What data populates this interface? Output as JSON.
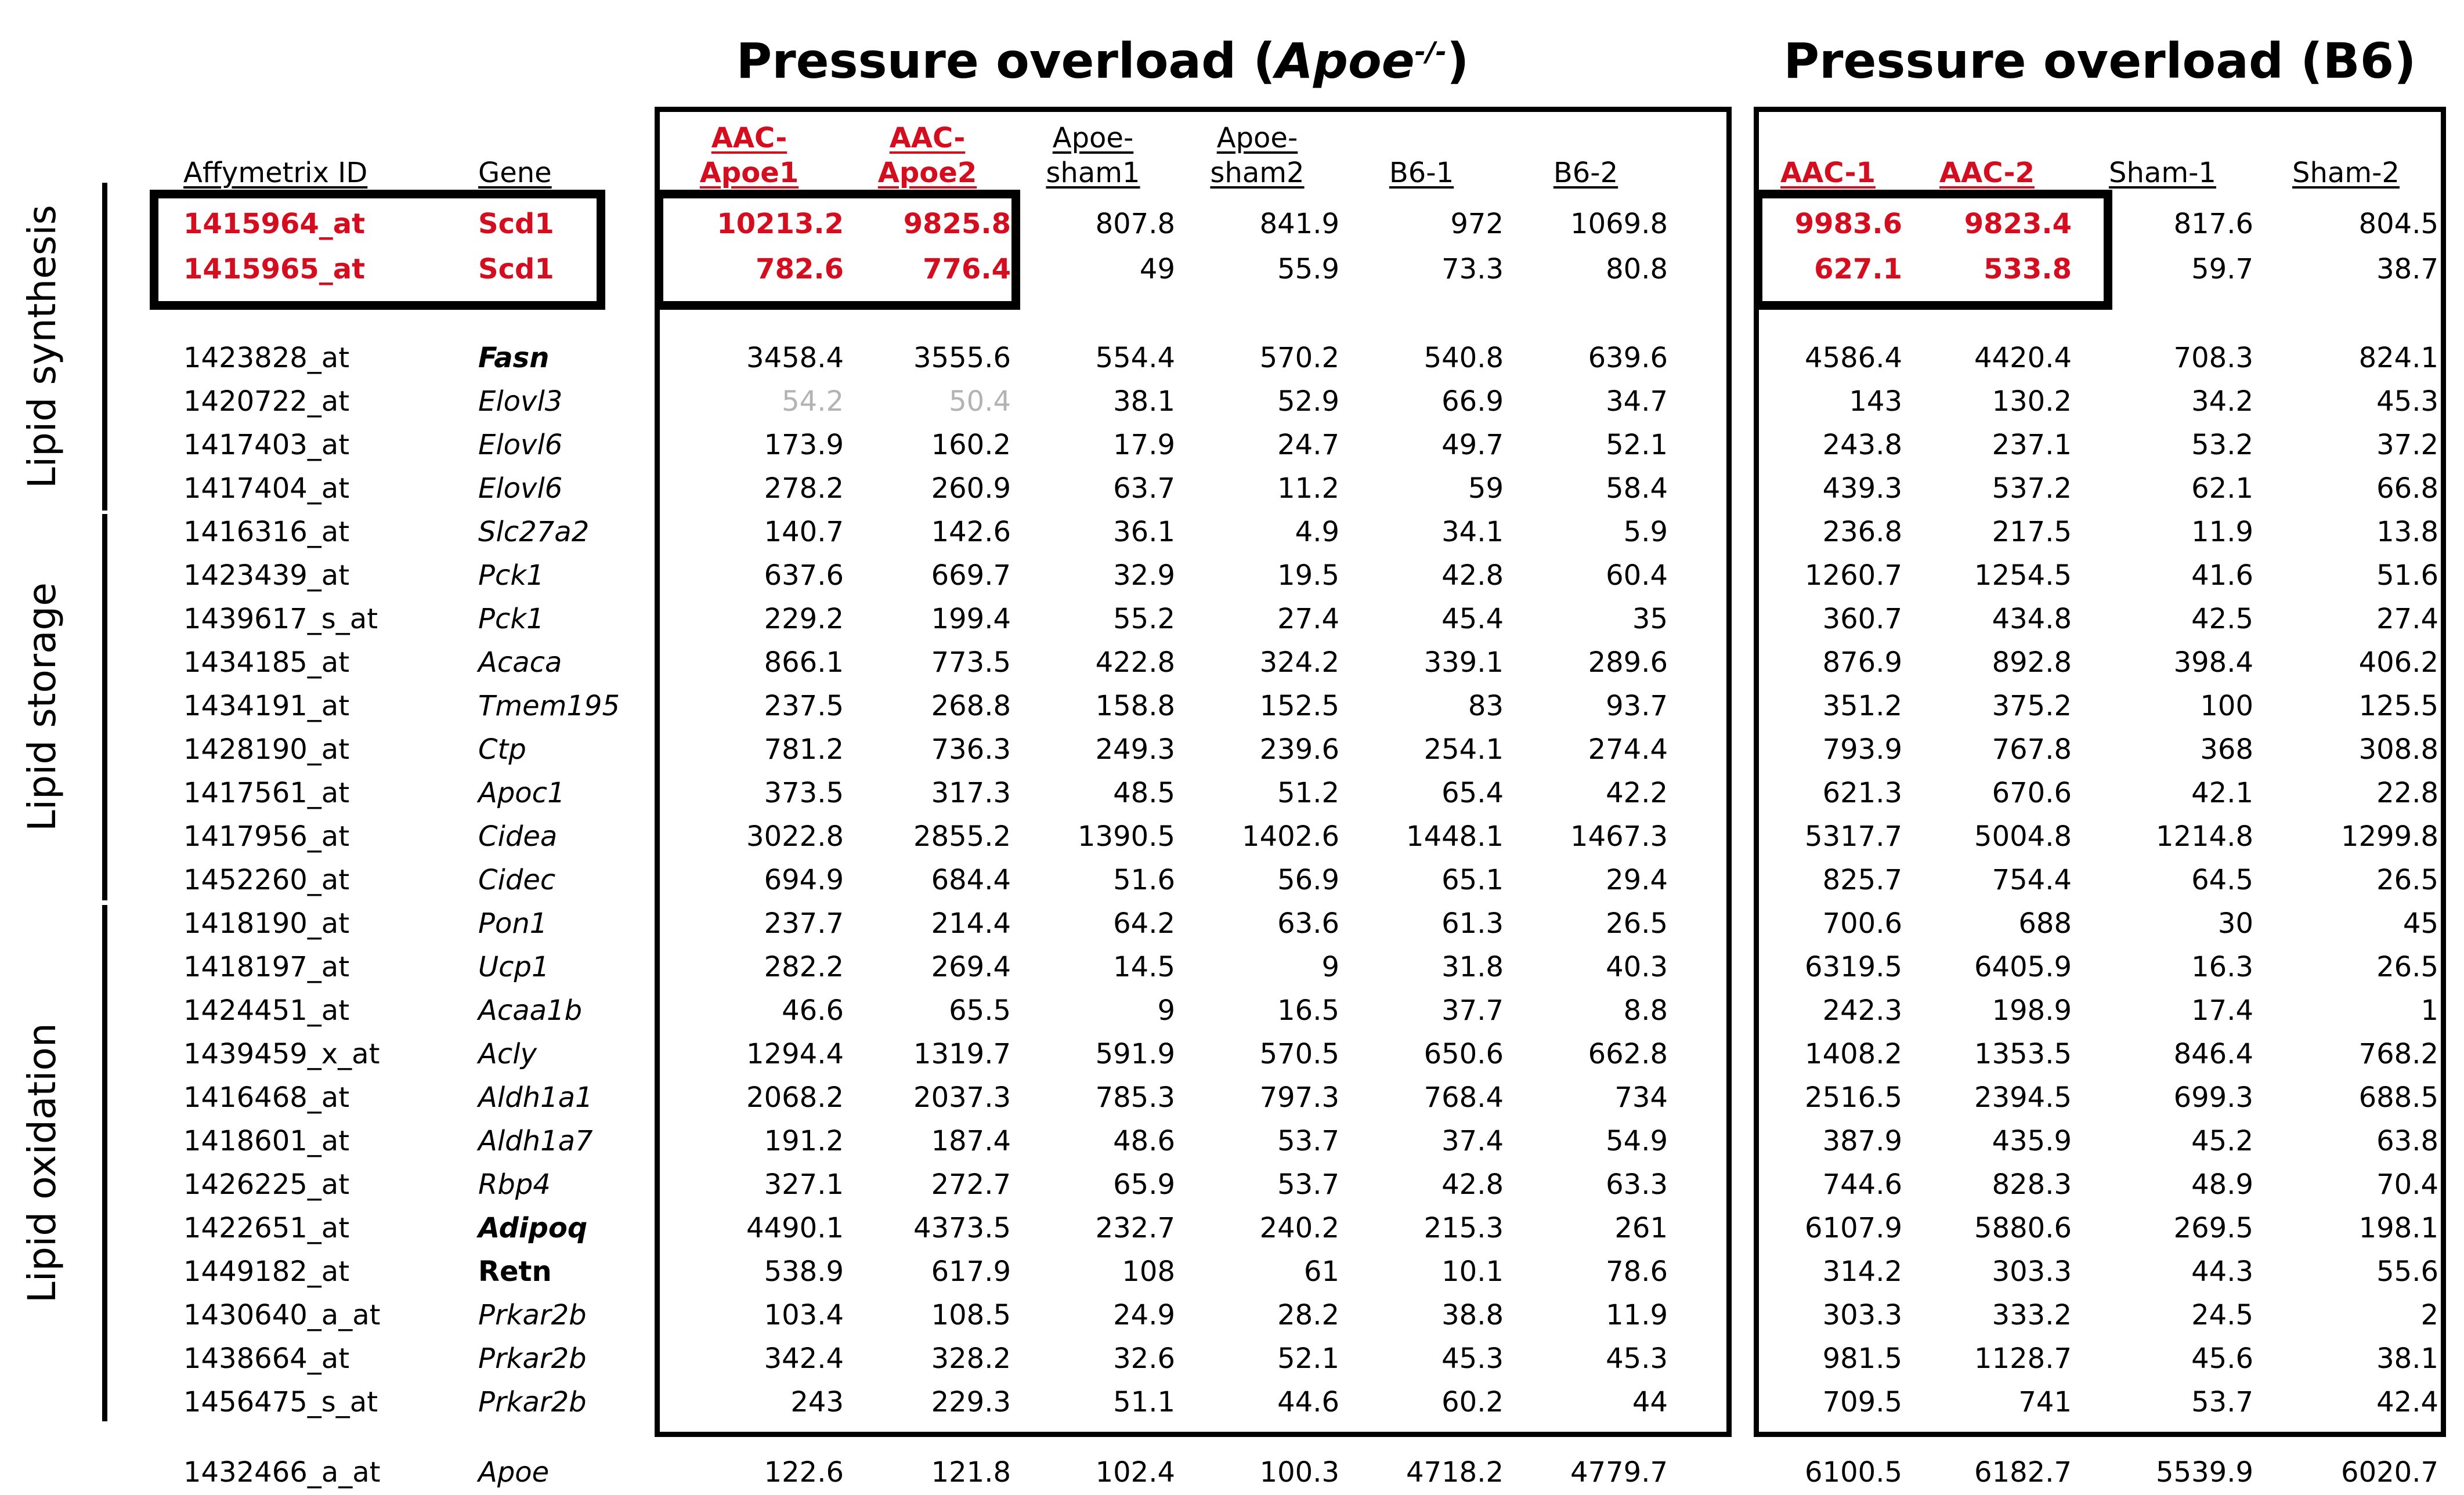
{
  "titles": {
    "left_prefix": "Pressure overload (",
    "left_gene": "Apoe",
    "left_sup": "-/-",
    "left_suffix": ")",
    "right": "Pressure overload (B6)"
  },
  "colors": {
    "highlight_red": "#d40d1f",
    "dimmed_gray": "#b3b3b3"
  },
  "headers": {
    "affymetrix": "Affymetrix ID",
    "gene": "Gene",
    "left_cols": [
      {
        "line1": "AAC-",
        "line2": "Apoe1",
        "red": true
      },
      {
        "line1": "AAC-",
        "line2": "Apoe2",
        "red": true
      },
      {
        "line1": "Apoe-",
        "line2": "sham1",
        "red": false
      },
      {
        "line1": "Apoe-",
        "line2": "sham2",
        "red": false
      },
      {
        "line1": "",
        "line2": "B6-1",
        "red": false
      },
      {
        "line1": "",
        "line2": "B6-2",
        "red": false
      }
    ],
    "right_cols": [
      {
        "line1": "",
        "line2": "AAC-1",
        "red": true
      },
      {
        "line1": "",
        "line2": "AAC-2",
        "red": true
      },
      {
        "line1": "",
        "line2": "Sham-1",
        "red": false
      },
      {
        "line1": "",
        "line2": "Sham-2",
        "red": false
      }
    ]
  },
  "groups": [
    {
      "label": "Lipid synthesis"
    },
    {
      "label": "Lipid storage"
    },
    {
      "label": "Lipid oxidation"
    }
  ],
  "chart_data": {
    "type": "table",
    "columns": [
      "Affymetrix ID",
      "Gene",
      "AAC-Apoe1",
      "AAC-Apoe2",
      "Apoe-sham1",
      "Apoe-sham2",
      "B6-1",
      "B6-2",
      "AAC-1",
      "AAC-2",
      "Sham-1",
      "Sham-2"
    ],
    "rows": [
      {
        "id": "1415964_at",
        "gene": "Scd1",
        "gene_style": "scd1",
        "highlight": true,
        "group": "Lipid synthesis",
        "values": [
          "10213.2",
          "9825.8",
          "807.8",
          "841.9",
          "972",
          "1069.8",
          "9983.6",
          "9823.4",
          "817.6",
          "804.5"
        ],
        "red_values": [
          0,
          1,
          6,
          7
        ],
        "gray_values": []
      },
      {
        "id": "1415965_at",
        "gene": "Scd1",
        "gene_style": "scd1",
        "highlight": true,
        "group": "Lipid synthesis",
        "values": [
          "782.6",
          "776.4",
          "49",
          "55.9",
          "73.3",
          "80.8",
          "627.1",
          "533.8",
          "59.7",
          "38.7"
        ],
        "red_values": [
          0,
          1,
          6,
          7
        ],
        "gray_values": []
      },
      {
        "id": "1423828_at",
        "gene": "Fasn",
        "gene_style": "bold-italic",
        "highlight": false,
        "group": "Lipid synthesis",
        "values": [
          "3458.4",
          "3555.6",
          "554.4",
          "570.2",
          "540.8",
          "639.6",
          "4586.4",
          "4420.4",
          "708.3",
          "824.1"
        ],
        "red_values": [],
        "gray_values": []
      },
      {
        "id": "1420722_at",
        "gene": "Elovl3",
        "gene_style": "italic",
        "highlight": false,
        "group": "Lipid synthesis",
        "values": [
          "54.2",
          "50.4",
          "38.1",
          "52.9",
          "66.9",
          "34.7",
          "143",
          "130.2",
          "34.2",
          "45.3"
        ],
        "red_values": [],
        "gray_values": [
          0,
          1
        ]
      },
      {
        "id": "1417403_at",
        "gene": "Elovl6",
        "gene_style": "italic",
        "highlight": false,
        "group": "Lipid synthesis",
        "values": [
          "173.9",
          "160.2",
          "17.9",
          "24.7",
          "49.7",
          "52.1",
          "243.8",
          "237.1",
          "53.2",
          "37.2"
        ],
        "red_values": [],
        "gray_values": []
      },
      {
        "id": "1417404_at",
        "gene": "Elovl6",
        "gene_style": "italic",
        "highlight": false,
        "group": "Lipid synthesis",
        "values": [
          "278.2",
          "260.9",
          "63.7",
          "11.2",
          "59",
          "58.4",
          "439.3",
          "537.2",
          "62.1",
          "66.8"
        ],
        "red_values": [],
        "gray_values": []
      },
      {
        "id": "1416316_at",
        "gene": "Slc27a2",
        "gene_style": "italic",
        "highlight": false,
        "group": "Lipid storage",
        "values": [
          "140.7",
          "142.6",
          "36.1",
          "4.9",
          "34.1",
          "5.9",
          "236.8",
          "217.5",
          "11.9",
          "13.8"
        ],
        "red_values": [],
        "gray_values": []
      },
      {
        "id": "1423439_at",
        "gene": "Pck1",
        "gene_style": "italic",
        "highlight": false,
        "group": "Lipid storage",
        "values": [
          "637.6",
          "669.7",
          "32.9",
          "19.5",
          "42.8",
          "60.4",
          "1260.7",
          "1254.5",
          "41.6",
          "51.6"
        ],
        "red_values": [],
        "gray_values": []
      },
      {
        "id": "1439617_s_at",
        "gene": "Pck1",
        "gene_style": "italic",
        "highlight": false,
        "group": "Lipid storage",
        "values": [
          "229.2",
          "199.4",
          "55.2",
          "27.4",
          "45.4",
          "35",
          "360.7",
          "434.8",
          "42.5",
          "27.4"
        ],
        "red_values": [],
        "gray_values": []
      },
      {
        "id": "1434185_at",
        "gene": "Acaca",
        "gene_style": "italic",
        "highlight": false,
        "group": "Lipid storage",
        "values": [
          "866.1",
          "773.5",
          "422.8",
          "324.2",
          "339.1",
          "289.6",
          "876.9",
          "892.8",
          "398.4",
          "406.2"
        ],
        "red_values": [],
        "gray_values": []
      },
      {
        "id": "1434191_at",
        "gene": "Tmem195",
        "gene_style": "italic",
        "highlight": false,
        "group": "Lipid storage",
        "values": [
          "237.5",
          "268.8",
          "158.8",
          "152.5",
          "83",
          "93.7",
          "351.2",
          "375.2",
          "100",
          "125.5"
        ],
        "red_values": [],
        "gray_values": []
      },
      {
        "id": "1428190_at",
        "gene": "Ctp",
        "gene_style": "italic",
        "highlight": false,
        "group": "Lipid storage",
        "values": [
          "781.2",
          "736.3",
          "249.3",
          "239.6",
          "254.1",
          "274.4",
          "793.9",
          "767.8",
          "368",
          "308.8"
        ],
        "red_values": [],
        "gray_values": []
      },
      {
        "id": "1417561_at",
        "gene": "Apoc1",
        "gene_style": "italic",
        "highlight": false,
        "group": "Lipid storage",
        "values": [
          "373.5",
          "317.3",
          "48.5",
          "51.2",
          "65.4",
          "42.2",
          "621.3",
          "670.6",
          "42.1",
          "22.8"
        ],
        "red_values": [],
        "gray_values": []
      },
      {
        "id": "1417956_at",
        "gene": "Cidea",
        "gene_style": "italic",
        "highlight": false,
        "group": "Lipid storage",
        "values": [
          "3022.8",
          "2855.2",
          "1390.5",
          "1402.6",
          "1448.1",
          "1467.3",
          "5317.7",
          "5004.8",
          "1214.8",
          "1299.8"
        ],
        "red_values": [],
        "gray_values": []
      },
      {
        "id": "1452260_at",
        "gene": "Cidec",
        "gene_style": "italic",
        "highlight": false,
        "group": "Lipid storage",
        "values": [
          "694.9",
          "684.4",
          "51.6",
          "56.9",
          "65.1",
          "29.4",
          "825.7",
          "754.4",
          "64.5",
          "26.5"
        ],
        "red_values": [],
        "gray_values": []
      },
      {
        "id": "1418190_at",
        "gene": "Pon1",
        "gene_style": "italic",
        "highlight": false,
        "group": "Lipid oxidation",
        "values": [
          "237.7",
          "214.4",
          "64.2",
          "63.6",
          "61.3",
          "26.5",
          "700.6",
          "688",
          "30",
          "45"
        ],
        "red_values": [],
        "gray_values": []
      },
      {
        "id": "1418197_at",
        "gene": "Ucp1",
        "gene_style": "italic",
        "highlight": false,
        "group": "Lipid oxidation",
        "values": [
          "282.2",
          "269.4",
          "14.5",
          "9",
          "31.8",
          "40.3",
          "6319.5",
          "6405.9",
          "16.3",
          "26.5"
        ],
        "red_values": [],
        "gray_values": []
      },
      {
        "id": "1424451_at",
        "gene": "Acaa1b",
        "gene_style": "italic",
        "highlight": false,
        "group": "Lipid oxidation",
        "values": [
          "46.6",
          "65.5",
          "9",
          "16.5",
          "37.7",
          "8.8",
          "242.3",
          "198.9",
          "17.4",
          "1"
        ],
        "red_values": [],
        "gray_values": []
      },
      {
        "id": "1439459_x_at",
        "gene": "Acly",
        "gene_style": "italic",
        "highlight": false,
        "group": "Lipid oxidation",
        "values": [
          "1294.4",
          "1319.7",
          "591.9",
          "570.5",
          "650.6",
          "662.8",
          "1408.2",
          "1353.5",
          "846.4",
          "768.2"
        ],
        "red_values": [],
        "gray_values": []
      },
      {
        "id": "1416468_at",
        "gene": "Aldh1a1",
        "gene_style": "italic",
        "highlight": false,
        "group": "Lipid oxidation",
        "values": [
          "2068.2",
          "2037.3",
          "785.3",
          "797.3",
          "768.4",
          "734",
          "2516.5",
          "2394.5",
          "699.3",
          "688.5"
        ],
        "red_values": [],
        "gray_values": []
      },
      {
        "id": "1418601_at",
        "gene": "Aldh1a7",
        "gene_style": "italic",
        "highlight": false,
        "group": "Lipid oxidation",
        "values": [
          "191.2",
          "187.4",
          "48.6",
          "53.7",
          "37.4",
          "54.9",
          "387.9",
          "435.9",
          "45.2",
          "63.8"
        ],
        "red_values": [],
        "gray_values": []
      },
      {
        "id": "1426225_at",
        "gene": "Rbp4",
        "gene_style": "italic",
        "highlight": false,
        "group": "Lipid oxidation",
        "values": [
          "327.1",
          "272.7",
          "65.9",
          "53.7",
          "42.8",
          "63.3",
          "744.6",
          "828.3",
          "48.9",
          "70.4"
        ],
        "red_values": [],
        "gray_values": []
      },
      {
        "id": "1422651_at",
        "gene": "Adipoq",
        "gene_style": "bold-italic",
        "highlight": false,
        "group": "Lipid oxidation",
        "values": [
          "4490.1",
          "4373.5",
          "232.7",
          "240.2",
          "215.3",
          "261",
          "6107.9",
          "5880.6",
          "269.5",
          "198.1"
        ],
        "red_values": [],
        "gray_values": []
      },
      {
        "id": "1449182_at",
        "gene": "Retn",
        "gene_style": "bold",
        "highlight": false,
        "group": "Lipid oxidation",
        "values": [
          "538.9",
          "617.9",
          "108",
          "61",
          "10.1",
          "78.6",
          "314.2",
          "303.3",
          "44.3",
          "55.6"
        ],
        "red_values": [],
        "gray_values": []
      },
      {
        "id": "1430640_a_at",
        "gene": "Prkar2b",
        "gene_style": "italic",
        "highlight": false,
        "group": "Lipid oxidation",
        "values": [
          "103.4",
          "108.5",
          "24.9",
          "28.2",
          "38.8",
          "11.9",
          "303.3",
          "333.2",
          "24.5",
          "2"
        ],
        "red_values": [],
        "gray_values": []
      },
      {
        "id": "1438664_at",
        "gene": "Prkar2b",
        "gene_style": "italic",
        "highlight": false,
        "group": "Lipid oxidation",
        "values": [
          "342.4",
          "328.2",
          "32.6",
          "52.1",
          "45.3",
          "45.3",
          "981.5",
          "1128.7",
          "45.6",
          "38.1"
        ],
        "red_values": [],
        "gray_values": []
      },
      {
        "id": "1456475_s_at",
        "gene": "Prkar2b",
        "gene_style": "italic",
        "highlight": false,
        "group": "Lipid oxidation",
        "values": [
          "243",
          "229.3",
          "51.1",
          "44.6",
          "60.2",
          "44",
          "709.5",
          "741",
          "53.7",
          "42.4"
        ],
        "red_values": [],
        "gray_values": []
      },
      {
        "id": "1432466_a_at",
        "gene": "Apoe",
        "gene_style": "italic",
        "highlight": false,
        "group": "",
        "values": [
          "122.6",
          "121.8",
          "102.4",
          "100.3",
          "4718.2",
          "4779.7",
          "6100.5",
          "6182.7",
          "5539.9",
          "6020.7"
        ],
        "red_values": [],
        "gray_values": []
      }
    ]
  }
}
